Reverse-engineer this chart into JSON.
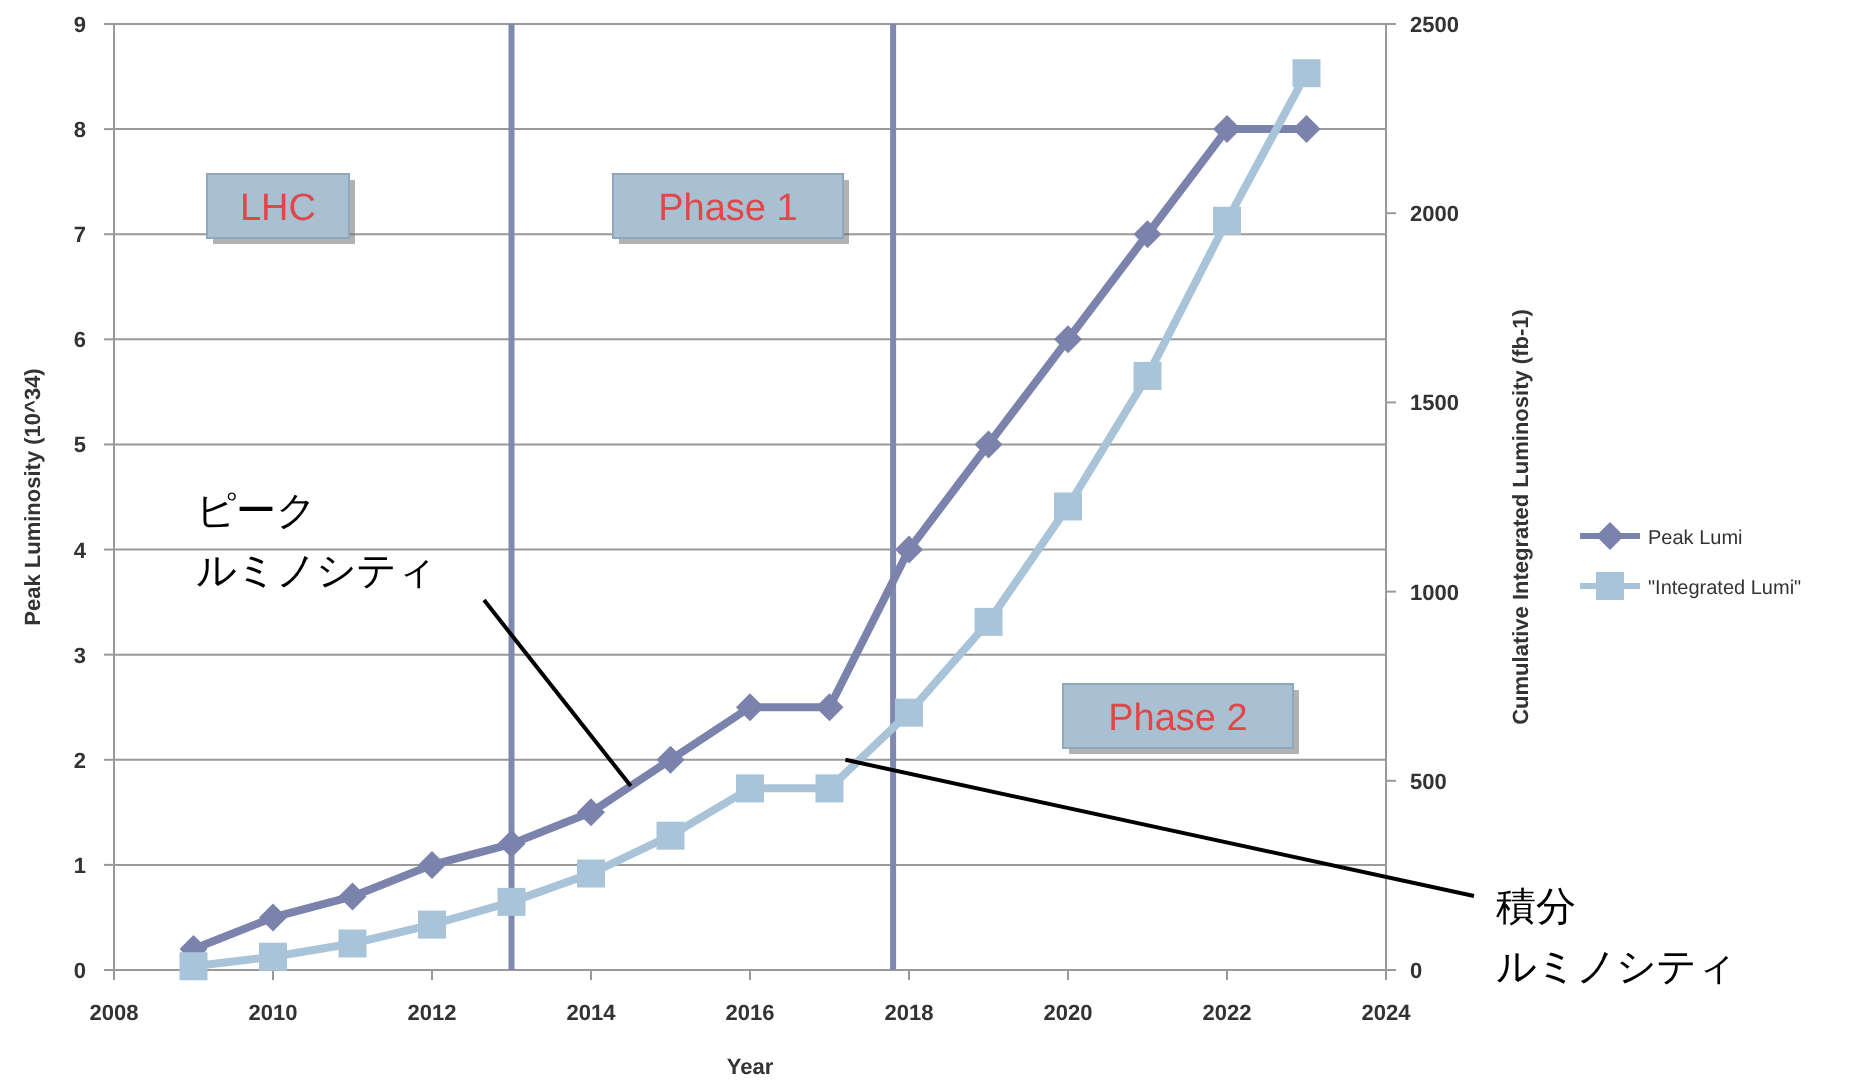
{
  "chart_data": {
    "type": "line",
    "xlabel": "Year",
    "ylabel": "Peak Luminosity (10^34)",
    "y2label": "Cumulative Integrated Luminosity (fb-1)",
    "x": [
      2009,
      2010,
      2011,
      2012,
      2013,
      2014,
      2015,
      2016,
      2017,
      2018,
      2019,
      2020,
      2021,
      2022,
      2023
    ],
    "series": [
      {
        "name": "Peak Lumi",
        "color": "#7b83ad",
        "marker": "diamond",
        "values": [
          0.2,
          0.5,
          0.7,
          1.0,
          1.2,
          1.5,
          2.0,
          2.5,
          2.5,
          4,
          5,
          6,
          7,
          8,
          8
        ]
      },
      {
        "name": "\"Integrated Lumi\"",
        "color": "#a9c4d9",
        "marker": "square",
        "axis": "y2",
        "values": [
          10,
          35,
          70,
          120,
          180,
          255,
          355,
          480,
          480,
          680,
          920,
          1225,
          1570,
          1980,
          2370
        ]
      }
    ],
    "xlim": [
      2008,
      2024
    ],
    "xticks": [
      2008,
      2010,
      2012,
      2014,
      2016,
      2018,
      2020,
      2022,
      2024
    ],
    "ylim": [
      0,
      9
    ],
    "yticks": [
      0,
      1,
      2,
      3,
      4,
      5,
      6,
      7,
      8,
      9
    ],
    "y2lim": [
      0,
      2500
    ],
    "y2ticks": [
      0,
      500,
      1000,
      1500,
      2000,
      2500
    ],
    "grid": "y",
    "legend": "right",
    "ref_lines": [
      {
        "axis": "x",
        "value": 2013,
        "color": "#8088b0"
      },
      {
        "axis": "x",
        "value": 2017.8,
        "color": "#8088b0"
      }
    ],
    "annotations": [
      "LHC",
      "Phase 1",
      "Phase 2",
      {
        "text": "ピークルミノシティ",
        "x": 2014.5,
        "y": 1.75
      },
      {
        "text": "積分ルミノシティ",
        "x": 2017.2,
        "y": 2.0
      }
    ]
  }
}
